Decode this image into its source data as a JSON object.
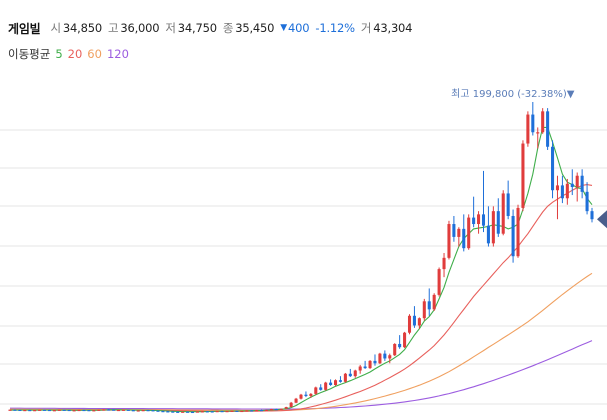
{
  "stock": {
    "name": "게임빌",
    "open_label": "시",
    "open": "34,850",
    "high_label": "고",
    "high": "36,000",
    "low_label": "저",
    "low": "34,750",
    "close_label": "종",
    "close": "35,450",
    "change_arrow": "▼",
    "change": "400",
    "change_pct": "-1.12%",
    "volume_label": "거",
    "volume": "43,304"
  },
  "ma_legend": {
    "label": "이동평균",
    "items": [
      {
        "period": "5",
        "color": "#3fae4a"
      },
      {
        "period": "20",
        "color": "#e8605c"
      },
      {
        "period": "60",
        "color": "#f0a060"
      },
      {
        "period": "120",
        "color": "#9c5de0"
      }
    ]
  },
  "colors": {
    "up": "#e03c3c",
    "down": "#1e6fd9",
    "grid": "#e6e6e6",
    "marker": "#4a5e8c",
    "high_label": "#5b7db8"
  },
  "chart_data": {
    "type": "candlestick",
    "title": "",
    "high_annotation": "최고 199,800 (-32.38%)▼",
    "y_axis_shown": false,
    "grid": true,
    "candles": [
      [
        8500,
        8800,
        8400,
        8700
      ],
      [
        8700,
        8900,
        8500,
        8600
      ],
      [
        8600,
        8700,
        8300,
        8400
      ],
      [
        8400,
        8600,
        8300,
        8500
      ],
      [
        8500,
        8700,
        8300,
        8350
      ],
      [
        8350,
        8500,
        8200,
        8450
      ],
      [
        8450,
        8700,
        8400,
        8650
      ],
      [
        8650,
        8800,
        8500,
        8550
      ],
      [
        8550,
        8700,
        8300,
        8350
      ],
      [
        8350,
        8500,
        8200,
        8400
      ],
      [
        8400,
        8700,
        8350,
        8650
      ],
      [
        8650,
        8800,
        8500,
        8550
      ],
      [
        8550,
        8600,
        8200,
        8250
      ],
      [
        8250,
        8400,
        8100,
        8350
      ],
      [
        8350,
        8600,
        8300,
        8550
      ],
      [
        8550,
        8700,
        8400,
        8450
      ],
      [
        8450,
        8500,
        8150,
        8200
      ],
      [
        8200,
        8400,
        8100,
        8350
      ],
      [
        8350,
        8700,
        8300,
        8650
      ],
      [
        8650,
        8900,
        8600,
        8850
      ],
      [
        8850,
        9000,
        8700,
        8750
      ],
      [
        8750,
        8800,
        8400,
        8450
      ],
      [
        8450,
        8600,
        8300,
        8550
      ],
      [
        8550,
        8700,
        8500,
        8650
      ],
      [
        8650,
        8700,
        8350,
        8400
      ],
      [
        8400,
        8500,
        8100,
        8150
      ],
      [
        8150,
        8300,
        8000,
        8250
      ],
      [
        8250,
        8500,
        8200,
        8450
      ],
      [
        8450,
        8600,
        8300,
        8350
      ],
      [
        8350,
        8400,
        8050,
        8100
      ],
      [
        8100,
        8200,
        7800,
        7850
      ],
      [
        7850,
        8000,
        7600,
        7700
      ],
      [
        7700,
        7900,
        7500,
        7550
      ],
      [
        7550,
        7700,
        7300,
        7400
      ],
      [
        7400,
        7600,
        7200,
        7250
      ],
      [
        7250,
        7500,
        7150,
        7450
      ],
      [
        7450,
        7600,
        7300,
        7350
      ],
      [
        7350,
        7500,
        7200,
        7300
      ],
      [
        7300,
        7600,
        7250,
        7550
      ],
      [
        7550,
        7800,
        7500,
        7700
      ],
      [
        7700,
        7900,
        7600,
        7650
      ],
      [
        7650,
        7800,
        7500,
        7600
      ],
      [
        7600,
        7900,
        7550,
        7850
      ],
      [
        7850,
        8000,
        7700,
        7750
      ],
      [
        7750,
        7900,
        7600,
        7850
      ],
      [
        7850,
        8100,
        7800,
        8000
      ],
      [
        8000,
        8100,
        7800,
        7850
      ],
      [
        7850,
        8000,
        7700,
        7950
      ],
      [
        7950,
        8300,
        7900,
        8250
      ],
      [
        8250,
        8400,
        8000,
        8050
      ],
      [
        8050,
        8500,
        8000,
        8450
      ],
      [
        8450,
        8700,
        8300,
        8350
      ],
      [
        8350,
        8600,
        8200,
        8550
      ],
      [
        8550,
        9200,
        8500,
        9100
      ],
      [
        9100,
        9300,
        8800,
        8900
      ],
      [
        8900,
        9400,
        8800,
        9300
      ],
      [
        9300,
        10500,
        9200,
        10300
      ],
      [
        10300,
        13500,
        10200,
        13000
      ],
      [
        13000,
        16000,
        12800,
        15500
      ],
      [
        15500,
        18500,
        15000,
        18000
      ],
      [
        18000,
        20000,
        16500,
        17200
      ],
      [
        17200,
        19000,
        16000,
        18500
      ],
      [
        18500,
        23000,
        18000,
        22500
      ],
      [
        22500,
        24500,
        20500,
        21000
      ],
      [
        21000,
        26000,
        20500,
        25500
      ],
      [
        25500,
        27500,
        23500,
        24000
      ],
      [
        24000,
        27500,
        23500,
        27000
      ],
      [
        27000,
        29500,
        25500,
        26000
      ],
      [
        26000,
        31500,
        25500,
        31000
      ],
      [
        31000,
        34000,
        29000,
        29500
      ],
      [
        29500,
        33500,
        28500,
        33000
      ],
      [
        33000,
        36500,
        31000,
        35500
      ],
      [
        35500,
        39000,
        34000,
        34500
      ],
      [
        34500,
        39500,
        34000,
        39000
      ],
      [
        39000,
        43000,
        36000,
        37500
      ],
      [
        37500,
        44000,
        37000,
        43500
      ],
      [
        43500,
        45500,
        39000,
        40500
      ],
      [
        40500,
        43500,
        37500,
        42500
      ],
      [
        42500,
        50000,
        42000,
        49500
      ],
      [
        49500,
        55000,
        46500,
        47500
      ],
      [
        47500,
        57000,
        47000,
        56500
      ],
      [
        56500,
        68000,
        55500,
        67000
      ],
      [
        67000,
        73000,
        59500,
        61000
      ],
      [
        61000,
        66000,
        59000,
        65500
      ],
      [
        65500,
        77500,
        64000,
        76000
      ],
      [
        76000,
        84000,
        67000,
        71000
      ],
      [
        71000,
        81000,
        70000,
        80000
      ],
      [
        80000,
        97000,
        79000,
        96000
      ],
      [
        96000,
        106000,
        91000,
        103000
      ],
      [
        103000,
        126000,
        102000,
        124000
      ],
      [
        124000,
        129000,
        113000,
        116000
      ],
      [
        116000,
        122000,
        110000,
        121000
      ],
      [
        121000,
        130000,
        107000,
        109000
      ],
      [
        109000,
        130000,
        108000,
        128000
      ],
      [
        128000,
        141000,
        122000,
        124000
      ],
      [
        124000,
        132000,
        118000,
        130000
      ],
      [
        130000,
        157000,
        119000,
        123000
      ],
      [
        123000,
        135000,
        110000,
        112000
      ],
      [
        112000,
        135000,
        110000,
        132000
      ],
      [
        132000,
        140000,
        116000,
        118000
      ],
      [
        118000,
        145000,
        117000,
        143000
      ],
      [
        143000,
        151000,
        127000,
        129000
      ],
      [
        129000,
        133000,
        100000,
        104000
      ],
      [
        104000,
        136000,
        103000,
        134000
      ],
      [
        134000,
        176000,
        132000,
        174000
      ],
      [
        174000,
        194000,
        172000,
        192000
      ],
      [
        192000,
        199800,
        179000,
        181000
      ],
      [
        181000,
        184000,
        171000,
        181000
      ],
      [
        181000,
        196000,
        180000,
        194000
      ],
      [
        194000,
        196000,
        170000,
        172000
      ],
      [
        172000,
        176000,
        140000,
        145000
      ],
      [
        145000,
        154000,
        127000,
        148000
      ],
      [
        148000,
        154000,
        137000,
        140000
      ],
      [
        140000,
        152000,
        136000,
        149000
      ],
      [
        149000,
        158000,
        142000,
        147000
      ],
      [
        147000,
        156000,
        138000,
        154000
      ],
      [
        154000,
        158000,
        140000,
        144000
      ],
      [
        144000,
        150000,
        130000,
        132000
      ],
      [
        132000,
        134000,
        125000,
        127000
      ]
    ],
    "ma5": [
      8400,
      8450,
      8500,
      8450,
      8400,
      8350,
      8400,
      8450,
      8400,
      8350,
      8400,
      8450,
      8400,
      8300,
      8300,
      8350,
      8350,
      8300,
      8350,
      8450,
      8600,
      8650,
      8600,
      8550,
      8500,
      8450,
      8350,
      8300,
      8300,
      8250,
      8150,
      8000,
      7850,
      7700,
      7550,
      7500,
      7450,
      7400,
      7400,
      7450,
      7550,
      7600,
      7700,
      7750,
      7750,
      7800,
      7850,
      7900,
      8000,
      8050,
      8150,
      8250,
      8350,
      8500,
      8700,
      8900,
      9300,
      10000,
      11300,
      13100,
      14800,
      16500,
      18000,
      19300,
      20500,
      21700,
      23200,
      24400,
      25500,
      26700,
      28000,
      29300,
      30600,
      32100,
      34000,
      35800,
      37500,
      39000,
      41000,
      43000,
      46000,
      50500,
      55000,
      59000,
      63700,
      66500,
      70700,
      77500,
      84500,
      94000,
      102000,
      110000,
      115000,
      118000,
      121000,
      121500,
      122000,
      122500,
      123500,
      123000,
      122500,
      121000,
      122000,
      124000,
      133000,
      143000,
      155000,
      171000,
      184000,
      184000,
      175000,
      165000,
      155000,
      150000,
      148500,
      146500,
      146000,
      140000,
      136000
    ],
    "ma20": [
      8500,
      8500,
      8500,
      8490,
      8480,
      8470,
      8470,
      8470,
      8460,
      8450,
      8450,
      8450,
      8440,
      8430,
      8420,
      8420,
      8410,
      8400,
      8400,
      8410,
      8420,
      8440,
      8450,
      8460,
      8460,
      8450,
      8430,
      8410,
      8390,
      8360,
      8320,
      8270,
      8220,
      8160,
      8090,
      8020,
      7960,
      7900,
      7850,
      7810,
      7770,
      7740,
      7710,
      7690,
      7670,
      7660,
      7660,
      7670,
      7690,
      7720,
      7760,
      7800,
      7850,
      7910,
      7990,
      8080,
      8220,
      8430,
      8740,
      9180,
      9740,
      10380,
      11100,
      11900,
      12750,
      13650,
      14600,
      15600,
      16700,
      17800,
      18900,
      20000,
      21200,
      22500,
      23900,
      25400,
      27000,
      28600,
      30300,
      32000,
      33900,
      36000,
      38300,
      40700,
      43200,
      45700,
      48500,
      51700,
      55100,
      58900,
      62900,
      67000,
      71000,
      75000,
      79000,
      82500,
      86000,
      89500,
      93000,
      96500,
      100000,
      103000,
      106500,
      110000,
      114000,
      118000,
      122500,
      127000,
      131500,
      135000,
      137500,
      139500,
      141500,
      143000,
      145000,
      146500,
      148000,
      148500,
      148000
    ],
    "ma60": [
      9000,
      8980,
      8960,
      8940,
      8920,
      8900,
      8890,
      8880,
      8870,
      8860,
      8850,
      8840,
      8830,
      8820,
      8810,
      8800,
      8790,
      8780,
      8770,
      8760,
      8750,
      8740,
      8730,
      8720,
      8710,
      8700,
      8690,
      8680,
      8670,
      8660,
      8650,
      8630,
      8610,
      8590,
      8570,
      8550,
      8530,
      8510,
      8490,
      8470,
      8450,
      8430,
      8410,
      8390,
      8370,
      8350,
      8330,
      8310,
      8290,
      8280,
      8270,
      8260,
      8250,
      8250,
      8260,
      8280,
      8320,
      8390,
      8500,
      8650,
      8830,
      9050,
      9320,
      9630,
      9980,
      10370,
      10790,
      11260,
      11770,
      12310,
      12890,
      13510,
      14160,
      14850,
      15580,
      16340,
      17130,
      17960,
      18820,
      19720,
      20680,
      21700,
      22780,
      23920,
      25130,
      26400,
      27740,
      29170,
      30690,
      32300,
      34000,
      35800,
      37650,
      39550,
      41500,
      43450,
      45400,
      47350,
      49300,
      51250,
      53200,
      55150,
      57100,
      59100,
      61150,
      63300,
      65550,
      67900,
      70350,
      72850,
      75350,
      77800,
      80200,
      82550,
      84850,
      87100,
      89300,
      91400,
      93400
    ],
    "ma120": [
      9600,
      9590,
      9580,
      9570,
      9560,
      9550,
      9540,
      9530,
      9520,
      9510,
      9500,
      9490,
      9480,
      9470,
      9460,
      9450,
      9440,
      9430,
      9420,
      9410,
      9400,
      9390,
      9380,
      9370,
      9360,
      9350,
      9340,
      9330,
      9320,
      9310,
      9300,
      9290,
      9280,
      9270,
      9260,
      9250,
      9240,
      9230,
      9220,
      9210,
      9200,
      9190,
      9180,
      9170,
      9160,
      9150,
      9140,
      9130,
      9120,
      9110,
      9100,
      9090,
      9080,
      9070,
      9060,
      9060,
      9070,
      9090,
      9130,
      9180,
      9240,
      9310,
      9400,
      9500,
      9610,
      9730,
      9870,
      10020,
      10180,
      10360,
      10550,
      10760,
      10980,
      11220,
      11480,
      11760,
      12060,
      12380,
      12730,
      13100,
      13500,
      13930,
      14400,
      14900,
      15440,
      16010,
      16620,
      17270,
      17960,
      18690,
      19460,
      20270,
      21120,
      22000,
      22920,
      23870,
      24850,
      25860,
      26900,
      27960,
      29040,
      30140,
      31260,
      32400,
      33560,
      34750,
      35960,
      37200,
      38460,
      39740,
      41040,
      42350,
      43670,
      45000,
      46330,
      47660,
      48990,
      50300,
      51600
    ]
  }
}
